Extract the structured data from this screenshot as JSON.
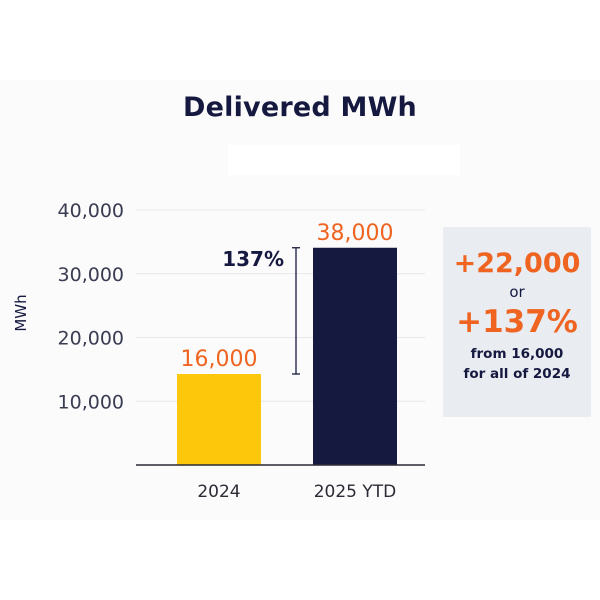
{
  "chart_data": {
    "type": "bar",
    "title": "Delivered MWh",
    "ylabel": "MWh",
    "xlabel": "",
    "categories": [
      "2024",
      "2025 YTD"
    ],
    "values": [
      16000,
      38000
    ],
    "data_labels": [
      "16,000",
      "38,000"
    ],
    "bar_colors": [
      "#fdc80b",
      "#15183f"
    ],
    "label_color": "#ee6420",
    "yticks": [
      10000,
      20000,
      30000,
      40000
    ],
    "ytick_labels": [
      "10,000",
      "20,000",
      "30,000",
      "40,000"
    ],
    "ylim": [
      0,
      40000
    ],
    "grid": true,
    "change_annotation": "137%"
  },
  "callout": {
    "increase": "+22,000",
    "or_text": "or",
    "percent": "+137%",
    "note_line1": "from 16,000",
    "note_line2": "for all of 2024"
  },
  "colors": {
    "navy": "#15183f",
    "orange": "#ee6420",
    "yellow": "#fdc80b",
    "callout_bg": "#e9edf2"
  }
}
